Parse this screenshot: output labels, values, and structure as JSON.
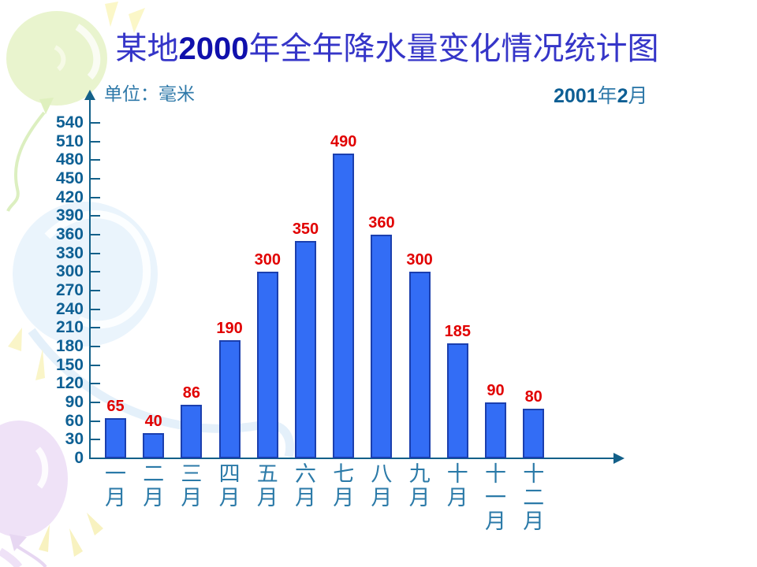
{
  "slide": {
    "title": {
      "prefix": "某地",
      "year": "2000",
      "suffix": "年全年降水量变化情况统计图"
    },
    "unit_label": "单位：毫米",
    "date_stamp": {
      "year": "2001",
      "year_unit": "年",
      "month": "2",
      "month_unit": "月"
    }
  },
  "chart_data": {
    "type": "bar",
    "title": "某地2000年全年降水量变化情况统计图",
    "ylabel": "单位：毫米",
    "xlabel": "",
    "categories": [
      "一月",
      "二月",
      "三月",
      "四月",
      "五月",
      "六月",
      "七月",
      "八月",
      "九月",
      "十月",
      "十一月",
      "十二月"
    ],
    "values": [
      65,
      40,
      86,
      190,
      300,
      350,
      490,
      360,
      300,
      185,
      90,
      80
    ],
    "ylim": [
      0,
      540
    ],
    "y_ticks": [
      0,
      30,
      60,
      90,
      120,
      150,
      180,
      210,
      240,
      270,
      300,
      330,
      360,
      390,
      420,
      450,
      480,
      510,
      540
    ],
    "grid": false,
    "legend": false,
    "annotation": "2001年2月",
    "bar_color": "#336df5",
    "bar_border_color": "#1b3fae",
    "value_label_color": "#e10000",
    "axis_color": "#136089",
    "tick_label_color": "#0e6094",
    "category_label_color": "#2b7aa8"
  },
  "decorations": [
    {
      "name": "balloon-green",
      "color": "#e9f4ce"
    },
    {
      "name": "balloon-blue",
      "color": "#eaf4fc"
    },
    {
      "name": "balloon-purple",
      "color": "#efe2f7"
    },
    {
      "name": "sparkle-yellow",
      "color": "#f8f2c0"
    }
  ],
  "colors": {
    "background": "#ffffff",
    "title_text": "#3535c8",
    "title_year": "#1010ac",
    "subtitle_teal": "#2f79a9",
    "subtitle_bold": "#0e5f94"
  }
}
